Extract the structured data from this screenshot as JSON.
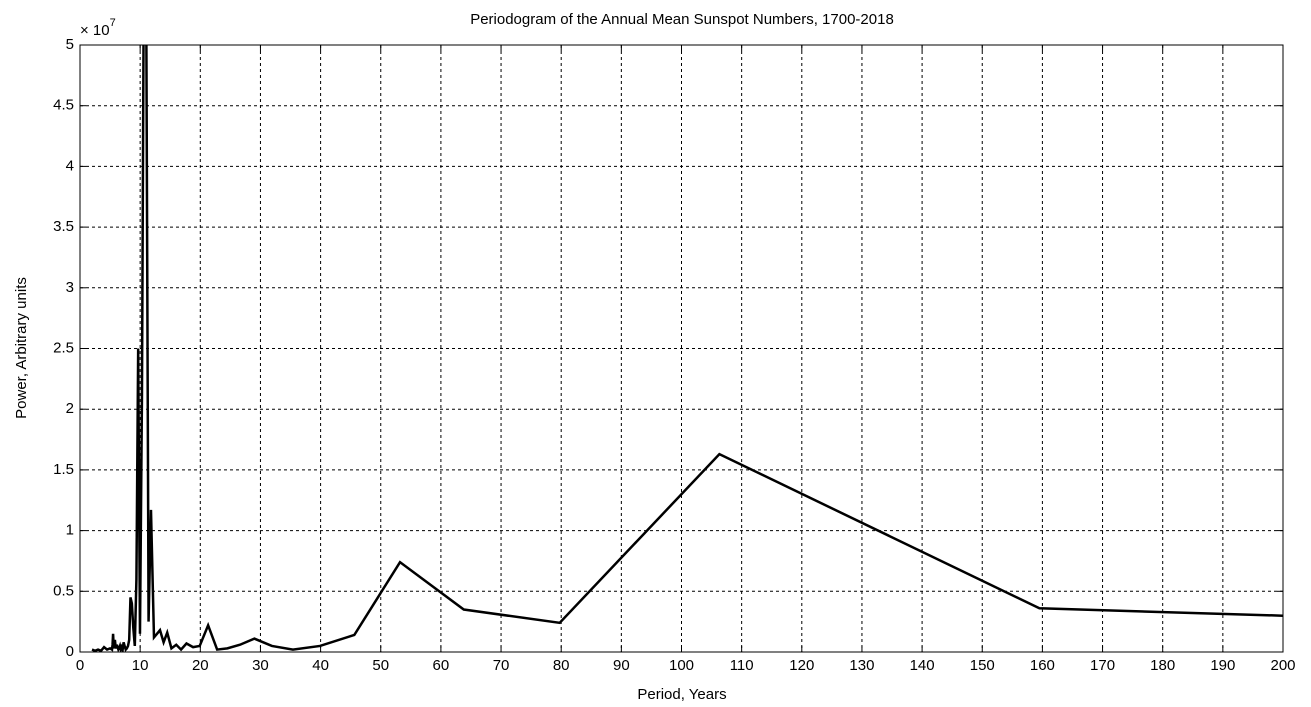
{
  "chart_data": {
    "type": "line",
    "title": "Periodogram of the Annual Mean Sunspot Numbers, 1700-2018",
    "x_label": "Period, Years",
    "y_label": "Power, Arbitrary units",
    "y_multiplier": "× 10",
    "y_multiplier_exponent": "7",
    "x": [
      2.0,
      2.5,
      3.0,
      3.5,
      4.0,
      4.5,
      5.0,
      5.32,
      5.41,
      5.5,
      5.6,
      5.7,
      5.8,
      5.91,
      6.02,
      6.13,
      6.25,
      6.38,
      6.51,
      6.65,
      6.79,
      6.93,
      7.09,
      7.25,
      7.42,
      7.6,
      7.78,
      7.98,
      8.18,
      8.39,
      8.62,
      8.86,
      9.11,
      9.38,
      9.67,
      9.97,
      10.3,
      10.6,
      11.0,
      11.4,
      11.8,
      12.3,
      12.8,
      13.3,
      13.9,
      14.5,
      15.2,
      16.0,
      16.8,
      17.7,
      18.8,
      19.9,
      21.3,
      22.8,
      24.5,
      26.6,
      29.0,
      31.9,
      35.4,
      39.9,
      45.6,
      53.2,
      63.8,
      79.75,
      106.3,
      159.5,
      319
    ],
    "values": [
      0.02,
      0.01,
      0.02,
      0.01,
      0.04,
      0.02,
      0.03,
      0.02,
      0.06,
      0.15,
      0.05,
      0.03,
      0.1,
      0.05,
      0.03,
      0.06,
      0.04,
      0.02,
      0.03,
      0.05,
      0.02,
      0.04,
      0.02,
      0.08,
      0.05,
      0.02,
      0.03,
      0.05,
      0.1,
      0.45,
      0.4,
      0.2,
      0.05,
      0.6,
      2.5,
      0.15,
      2.1,
      5.5,
      5.5,
      0.25,
      1.17,
      0.12,
      0.15,
      0.18,
      0.08,
      0.16,
      0.03,
      0.06,
      0.02,
      0.07,
      0.04,
      0.05,
      0.22,
      0.02,
      0.03,
      0.06,
      0.11,
      0.05,
      0.02,
      0.05,
      0.14,
      0.74,
      0.35,
      0.24,
      1.63,
      0.36,
      0.12
    ],
    "color": "#000000",
    "xlim": [
      0,
      200
    ],
    "xticks": [
      0,
      10,
      20,
      30,
      40,
      50,
      60,
      70,
      80,
      90,
      100,
      110,
      120,
      130,
      140,
      150,
      160,
      170,
      180,
      190,
      200
    ],
    "ylim": [
      0,
      5
    ],
    "yticks": [
      0,
      0.5,
      1,
      1.5,
      2,
      2.5,
      3,
      3.5,
      4,
      4.5,
      5
    ],
    "grid": true
  }
}
